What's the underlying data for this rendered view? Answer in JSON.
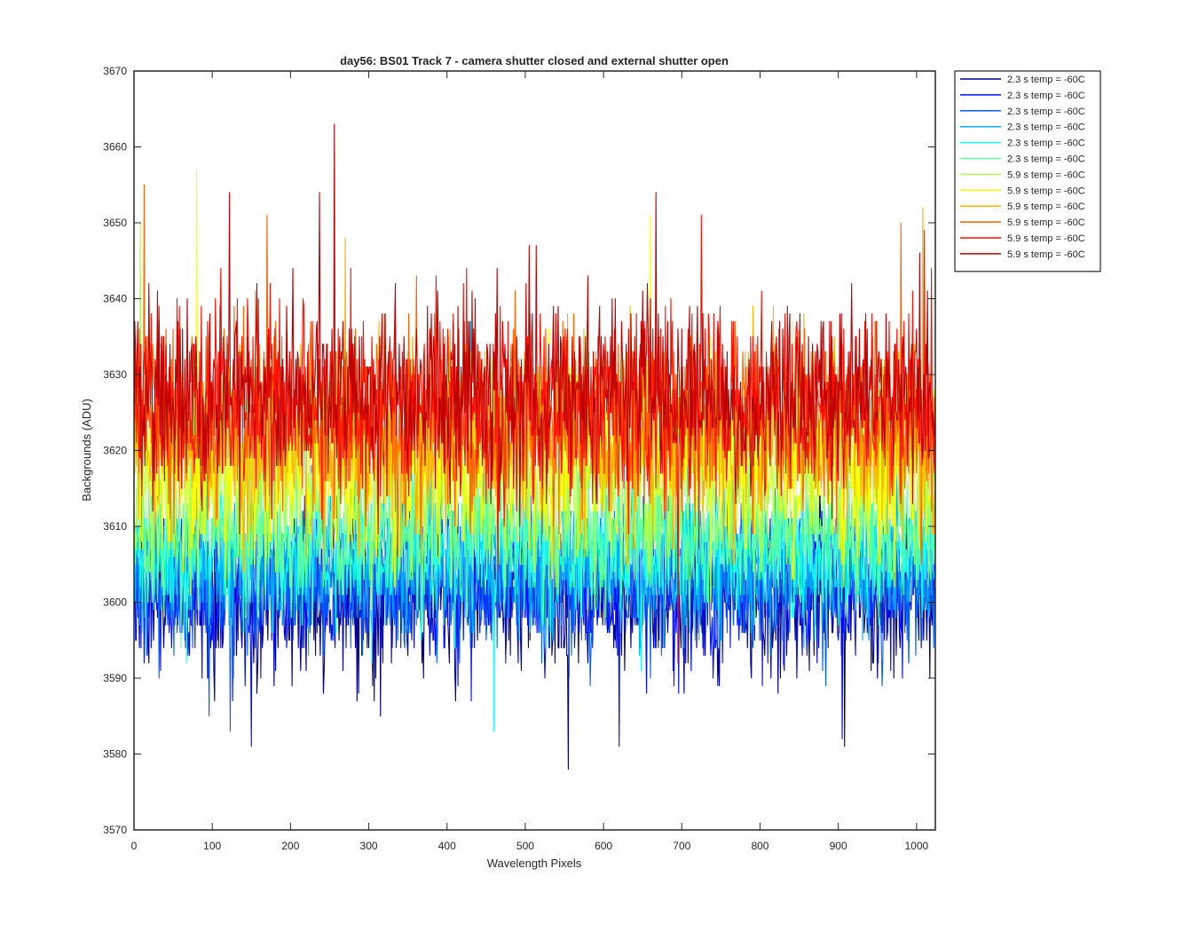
{
  "chart_data": {
    "type": "line",
    "title": "day56: BS01  Track 7 - camera shutter closed and external shutter open",
    "xlabel": "Wavelength Pixels",
    "ylabel": "Backgrounds (ADU)",
    "xlim": [
      0,
      1024
    ],
    "ylim": [
      3570,
      3670
    ],
    "xticks": [
      "0",
      "100",
      "200",
      "300",
      "400",
      "500",
      "600",
      "700",
      "800",
      "900",
      "1000"
    ],
    "yticks": [
      "3570",
      "3580",
      "3590",
      "3600",
      "3610",
      "3620",
      "3630",
      "3640",
      "3650",
      "3660",
      "3670"
    ],
    "grid": false,
    "legend_position": "outside-top-right",
    "series": [
      {
        "name": "2.3 s temp = -60C",
        "color": "#00008f",
        "mean": 3601,
        "noise_sd": 5.0,
        "peaks": [
          [
            555,
            3578
          ],
          [
            908,
            3581
          ]
        ]
      },
      {
        "name": "2.3 s temp = -60C",
        "color": "#0010ff",
        "mean": 3602,
        "noise_sd": 5.0,
        "peaks": [
          [
            150,
            3581
          ],
          [
            620,
            3581
          ],
          [
            905,
            3582
          ]
        ]
      },
      {
        "name": "2.3 s temp = -60C",
        "color": "#0060ff",
        "mean": 3603,
        "noise_sd": 4.8,
        "peaks": [
          [
            123,
            3583
          ],
          [
            96,
            3585
          ]
        ]
      },
      {
        "name": "2.3 s temp = -60C",
        "color": "#00b0ff",
        "mean": 3605,
        "noise_sd": 4.5,
        "peaks": [
          [
            430,
            3637
          ]
        ]
      },
      {
        "name": "2.3 s temp = -60C",
        "color": "#10ffef",
        "mean": 3607,
        "noise_sd": 4.5,
        "peaks": [
          [
            460,
            3583
          ]
        ]
      },
      {
        "name": "2.3 s temp = -60C",
        "color": "#60ff9f",
        "mean": 3609,
        "noise_sd": 4.5,
        "peaks": []
      },
      {
        "name": "5.9 s temp = -60C",
        "color": "#afff50",
        "mean": 3616,
        "noise_sd": 6.0,
        "peaks": [
          [
            8,
            3650
          ]
        ]
      },
      {
        "name": "5.9 s temp = -60C",
        "color": "#ffff00",
        "mean": 3619,
        "noise_sd": 6.0,
        "peaks": [
          [
            80,
            3657
          ],
          [
            660,
            3651
          ]
        ]
      },
      {
        "name": "5.9 s temp = -60C",
        "color": "#ffaf00",
        "mean": 3622,
        "noise_sd": 6.0,
        "peaks": [
          [
            1008,
            3652
          ],
          [
            270,
            3648
          ]
        ]
      },
      {
        "name": "5.9 s temp = -60C",
        "color": "#ff6000",
        "mean": 3624,
        "noise_sd": 6.0,
        "peaks": [
          [
            13,
            3655
          ],
          [
            170,
            3651
          ],
          [
            980,
            3650
          ]
        ]
      },
      {
        "name": "5.9 s temp = -60C",
        "color": "#ff1000",
        "mean": 3626,
        "noise_sd": 6.0,
        "peaks": [
          [
            725,
            3651
          ],
          [
            1010,
            3649
          ],
          [
            695,
            3592
          ]
        ]
      },
      {
        "name": "5.9 s temp = -60C",
        "color": "#bf0000",
        "mean": 3627,
        "noise_sd": 6.0,
        "peaks": [
          [
            256,
            3663
          ],
          [
            667,
            3654
          ],
          [
            122,
            3654
          ],
          [
            237,
            3654
          ]
        ]
      }
    ]
  }
}
